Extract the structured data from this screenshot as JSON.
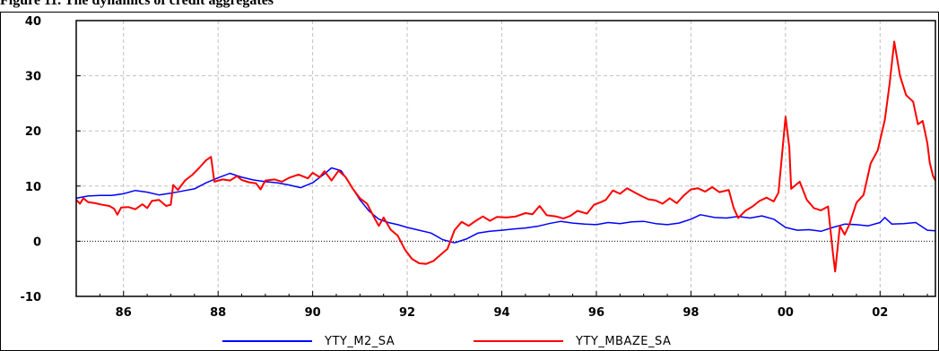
{
  "figure_title": "Figure 11. The dynamics of credit aggregates",
  "chart_data": {
    "type": "line",
    "title": "Figure 11. The dynamics of credit aggregates",
    "xlabel": "",
    "ylabel": "",
    "xlim": [
      1985.0,
      2003.17
    ],
    "ylim": [
      -10,
      40
    ],
    "y_ticks": [
      -10,
      0,
      10,
      20,
      30,
      40
    ],
    "x_ticks": [
      1986,
      1988,
      1990,
      1992,
      1994,
      1996,
      1998,
      2000,
      2002
    ],
    "x_tick_labels": [
      "86",
      "88",
      "90",
      "92",
      "94",
      "96",
      "98",
      "00",
      "02"
    ],
    "grid": true,
    "zero_line": true,
    "legend_position": "bottom",
    "series": [
      {
        "name": "YTY_M2_SA",
        "color": "#0000ff",
        "points": [
          [
            1985.0,
            7.8
          ],
          [
            1985.25,
            8.2
          ],
          [
            1985.5,
            8.3
          ],
          [
            1985.75,
            8.3
          ],
          [
            1986.0,
            8.6
          ],
          [
            1986.25,
            9.2
          ],
          [
            1986.5,
            8.9
          ],
          [
            1986.75,
            8.4
          ],
          [
            1987.0,
            8.7
          ],
          [
            1987.25,
            9.1
          ],
          [
            1987.5,
            9.5
          ],
          [
            1987.75,
            10.6
          ],
          [
            1988.0,
            11.5
          ],
          [
            1988.25,
            12.3
          ],
          [
            1988.5,
            11.6
          ],
          [
            1988.75,
            11.1
          ],
          [
            1989.0,
            10.8
          ],
          [
            1989.25,
            10.6
          ],
          [
            1989.5,
            10.2
          ],
          [
            1989.75,
            9.7
          ],
          [
            1990.0,
            10.6
          ],
          [
            1990.25,
            12.2
          ],
          [
            1990.4,
            13.3
          ],
          [
            1990.6,
            12.8
          ],
          [
            1990.8,
            10.2
          ],
          [
            1991.0,
            7.5
          ],
          [
            1991.2,
            5.4
          ],
          [
            1991.4,
            4.0
          ],
          [
            1991.6,
            3.4
          ],
          [
            1991.8,
            3.0
          ],
          [
            1992.0,
            2.5
          ],
          [
            1992.25,
            2.0
          ],
          [
            1992.5,
            1.5
          ],
          [
            1992.75,
            0.3
          ],
          [
            1993.0,
            -0.3
          ],
          [
            1993.25,
            0.4
          ],
          [
            1993.5,
            1.5
          ],
          [
            1993.75,
            1.8
          ],
          [
            1994.0,
            2.0
          ],
          [
            1994.25,
            2.2
          ],
          [
            1994.5,
            2.4
          ],
          [
            1994.75,
            2.7
          ],
          [
            1995.0,
            3.2
          ],
          [
            1995.25,
            3.6
          ],
          [
            1995.5,
            3.3
          ],
          [
            1995.75,
            3.1
          ],
          [
            1996.0,
            3.0
          ],
          [
            1996.25,
            3.4
          ],
          [
            1996.5,
            3.2
          ],
          [
            1996.75,
            3.5
          ],
          [
            1997.0,
            3.6
          ],
          [
            1997.25,
            3.2
          ],
          [
            1997.5,
            3.0
          ],
          [
            1997.75,
            3.3
          ],
          [
            1998.0,
            4.0
          ],
          [
            1998.2,
            4.8
          ],
          [
            1998.5,
            4.3
          ],
          [
            1998.75,
            4.2
          ],
          [
            1999.0,
            4.5
          ],
          [
            1999.25,
            4.2
          ],
          [
            1999.5,
            4.6
          ],
          [
            1999.75,
            4.0
          ],
          [
            2000.0,
            2.5
          ],
          [
            2000.25,
            2.0
          ],
          [
            2000.5,
            2.1
          ],
          [
            2000.75,
            1.8
          ],
          [
            2001.0,
            2.5
          ],
          [
            2001.25,
            3.1
          ],
          [
            2001.5,
            3.0
          ],
          [
            2001.75,
            2.8
          ],
          [
            2002.0,
            3.4
          ],
          [
            2002.1,
            4.3
          ],
          [
            2002.25,
            3.1
          ],
          [
            2002.5,
            3.2
          ],
          [
            2002.75,
            3.4
          ],
          [
            2003.0,
            2.0
          ],
          [
            2003.17,
            1.9
          ]
        ]
      },
      {
        "name": "YTY_MBAZE_SA",
        "color": "#ff0000",
        "points": [
          [
            1985.0,
            7.5
          ],
          [
            1985.08,
            6.8
          ],
          [
            1985.15,
            7.8
          ],
          [
            1985.25,
            7.1
          ],
          [
            1985.4,
            6.9
          ],
          [
            1985.55,
            6.6
          ],
          [
            1985.7,
            6.4
          ],
          [
            1985.8,
            5.9
          ],
          [
            1985.87,
            4.8
          ],
          [
            1985.95,
            6.1
          ],
          [
            1986.1,
            6.2
          ],
          [
            1986.25,
            5.8
          ],
          [
            1986.4,
            6.7
          ],
          [
            1986.5,
            6.0
          ],
          [
            1986.6,
            7.3
          ],
          [
            1986.75,
            7.5
          ],
          [
            1986.9,
            6.4
          ],
          [
            1987.0,
            6.6
          ],
          [
            1987.05,
            10.2
          ],
          [
            1987.15,
            9.3
          ],
          [
            1987.3,
            11.0
          ],
          [
            1987.45,
            12.0
          ],
          [
            1987.6,
            13.3
          ],
          [
            1987.75,
            14.7
          ],
          [
            1987.85,
            15.3
          ],
          [
            1987.92,
            10.8
          ],
          [
            1988.1,
            11.2
          ],
          [
            1988.25,
            11.0
          ],
          [
            1988.4,
            11.8
          ],
          [
            1988.5,
            11.1
          ],
          [
            1988.65,
            10.7
          ],
          [
            1988.8,
            10.5
          ],
          [
            1988.9,
            9.4
          ],
          [
            1989.0,
            11.0
          ],
          [
            1989.2,
            11.2
          ],
          [
            1989.35,
            10.8
          ],
          [
            1989.5,
            11.5
          ],
          [
            1989.7,
            12.1
          ],
          [
            1989.9,
            11.4
          ],
          [
            1990.0,
            12.4
          ],
          [
            1990.15,
            11.6
          ],
          [
            1990.25,
            12.7
          ],
          [
            1990.4,
            11.0
          ],
          [
            1990.55,
            12.8
          ],
          [
            1990.7,
            11.6
          ],
          [
            1990.85,
            9.5
          ],
          [
            1991.0,
            7.8
          ],
          [
            1991.15,
            6.8
          ],
          [
            1991.3,
            4.3
          ],
          [
            1991.4,
            2.8
          ],
          [
            1991.5,
            4.3
          ],
          [
            1991.65,
            2.1
          ],
          [
            1991.8,
            1.0
          ],
          [
            1991.95,
            -1.5
          ],
          [
            1992.1,
            -3.2
          ],
          [
            1992.25,
            -4.0
          ],
          [
            1992.4,
            -4.1
          ],
          [
            1992.55,
            -3.6
          ],
          [
            1992.7,
            -2.5
          ],
          [
            1992.85,
            -1.4
          ],
          [
            1993.0,
            2.0
          ],
          [
            1993.15,
            3.5
          ],
          [
            1993.3,
            2.8
          ],
          [
            1993.45,
            3.7
          ],
          [
            1993.6,
            4.5
          ],
          [
            1993.75,
            3.7
          ],
          [
            1993.9,
            4.4
          ],
          [
            1994.1,
            4.3
          ],
          [
            1994.3,
            4.5
          ],
          [
            1994.5,
            5.1
          ],
          [
            1994.65,
            4.9
          ],
          [
            1994.8,
            6.4
          ],
          [
            1994.95,
            4.7
          ],
          [
            1995.15,
            4.5
          ],
          [
            1995.3,
            4.1
          ],
          [
            1995.45,
            4.6
          ],
          [
            1995.6,
            5.5
          ],
          [
            1995.8,
            5.0
          ],
          [
            1995.95,
            6.6
          ],
          [
            1996.1,
            7.1
          ],
          [
            1996.2,
            7.5
          ],
          [
            1996.35,
            9.2
          ],
          [
            1996.5,
            8.6
          ],
          [
            1996.65,
            9.6
          ],
          [
            1996.8,
            8.9
          ],
          [
            1996.95,
            8.2
          ],
          [
            1997.1,
            7.6
          ],
          [
            1997.25,
            7.4
          ],
          [
            1997.4,
            6.8
          ],
          [
            1997.55,
            7.8
          ],
          [
            1997.7,
            6.9
          ],
          [
            1997.85,
            8.3
          ],
          [
            1998.0,
            9.4
          ],
          [
            1998.15,
            9.6
          ],
          [
            1998.3,
            9.0
          ],
          [
            1998.45,
            9.8
          ],
          [
            1998.6,
            8.9
          ],
          [
            1998.8,
            9.3
          ],
          [
            1998.9,
            6.1
          ],
          [
            1999.0,
            4.2
          ],
          [
            1999.15,
            5.5
          ],
          [
            1999.3,
            6.3
          ],
          [
            1999.45,
            7.3
          ],
          [
            1999.6,
            7.9
          ],
          [
            1999.75,
            7.2
          ],
          [
            1999.85,
            8.8
          ],
          [
            1999.92,
            15.0
          ],
          [
            2000.0,
            22.6
          ],
          [
            2000.08,
            17.0
          ],
          [
            2000.12,
            9.5
          ],
          [
            2000.3,
            10.8
          ],
          [
            2000.45,
            7.5
          ],
          [
            2000.6,
            6.0
          ],
          [
            2000.75,
            5.6
          ],
          [
            2000.9,
            6.3
          ],
          [
            2001.0,
            -2.0
          ],
          [
            2001.05,
            -5.5
          ],
          [
            2001.15,
            2.8
          ],
          [
            2001.25,
            1.2
          ],
          [
            2001.35,
            3.0
          ],
          [
            2001.5,
            7.0
          ],
          [
            2001.65,
            8.4
          ],
          [
            2001.8,
            14.1
          ],
          [
            2001.95,
            16.5
          ],
          [
            2002.1,
            22.0
          ],
          [
            2002.2,
            28.5
          ],
          [
            2002.3,
            36.2
          ],
          [
            2002.42,
            30.0
          ],
          [
            2002.55,
            26.5
          ],
          [
            2002.7,
            25.3
          ],
          [
            2002.8,
            21.2
          ],
          [
            2002.9,
            21.8
          ],
          [
            2003.0,
            17.8
          ],
          [
            2003.05,
            14.2
          ],
          [
            2003.12,
            11.8
          ],
          [
            2003.17,
            11.0
          ]
        ]
      }
    ]
  }
}
